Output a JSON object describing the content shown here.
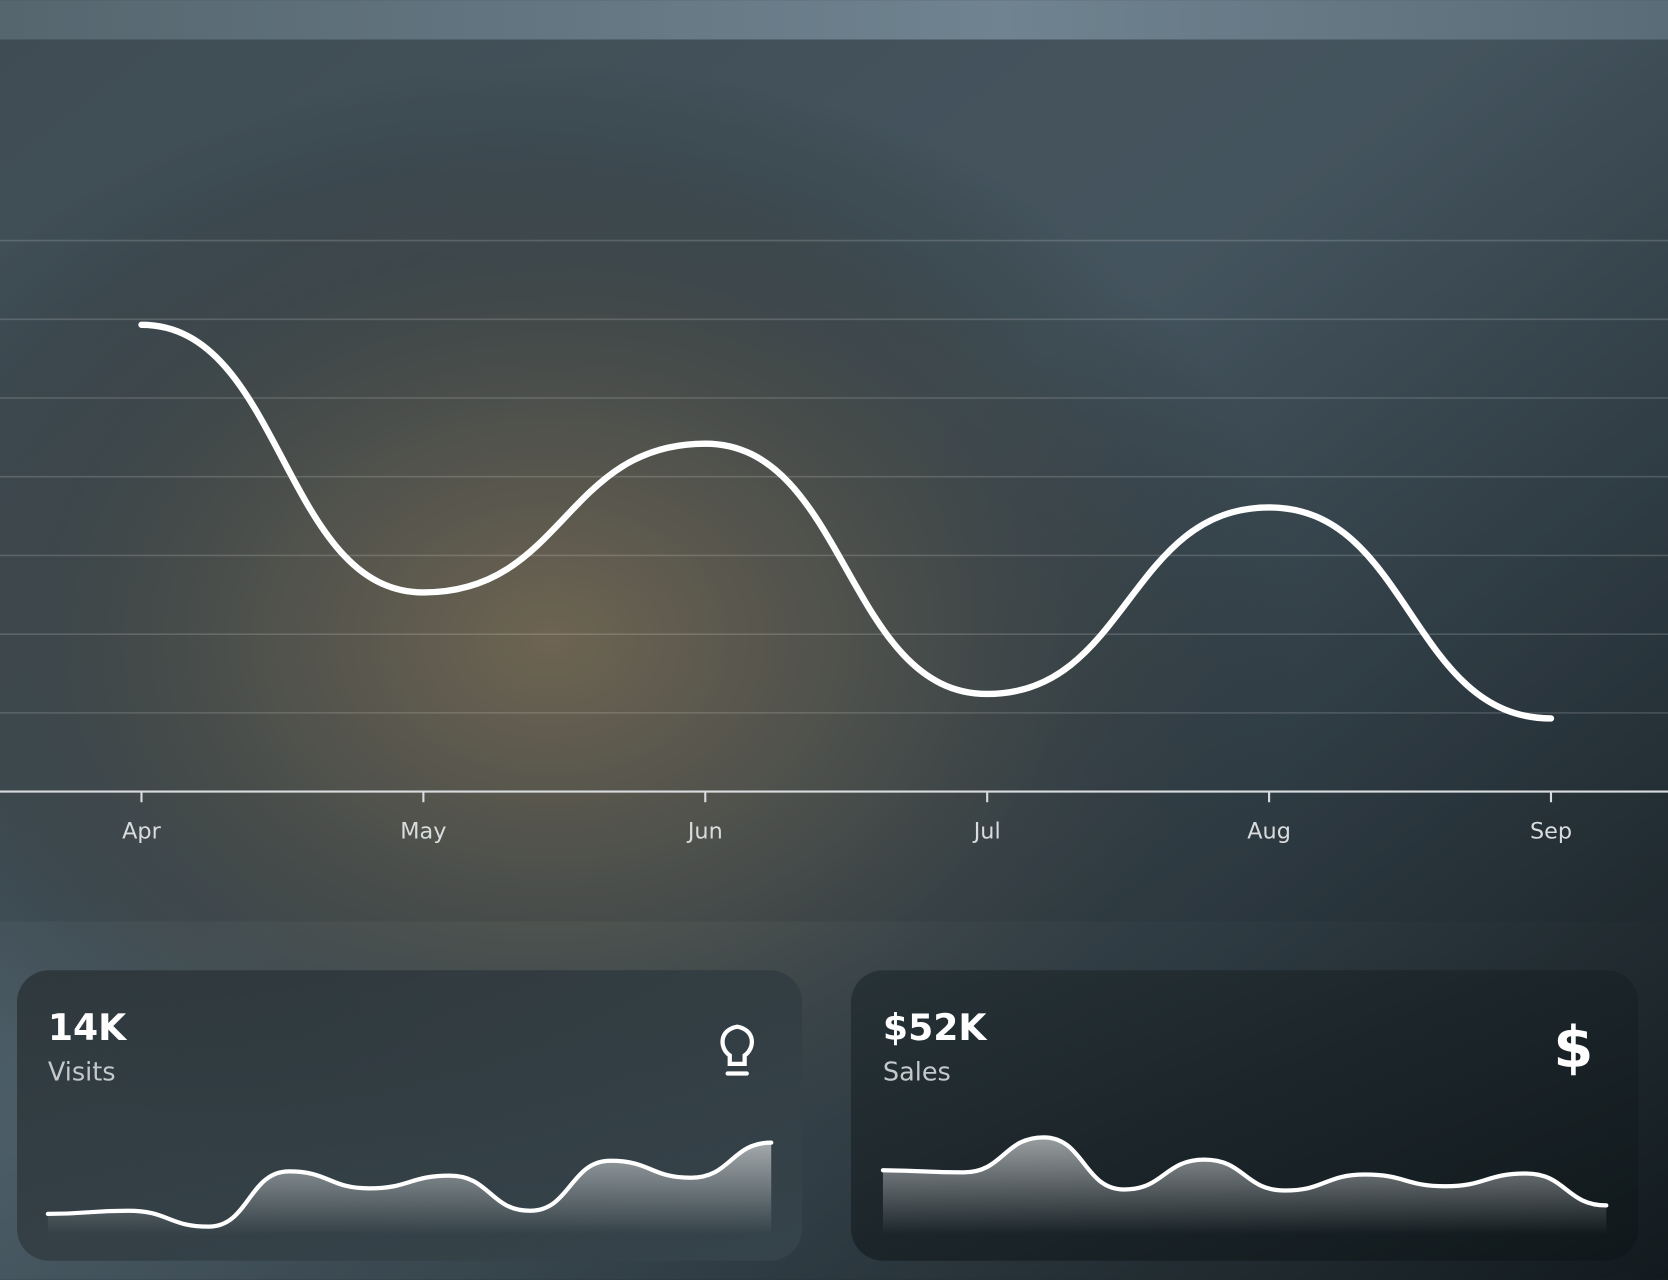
{
  "chart_data": [
    {
      "type": "line",
      "categories": [
        "Apr",
        "May",
        "Jun",
        "Jul",
        "Aug",
        "Sep"
      ],
      "values": [
        5.93,
        2.53,
        4.42,
        1.24,
        3.61,
        0.93
      ],
      "color": "#ffffff",
      "ylim": [
        0,
        9.5
      ],
      "yticks": [
        1,
        2,
        3,
        4,
        5,
        6,
        7
      ],
      "grid": true
    },
    {
      "type": "area",
      "title": "14K",
      "subtitle": "Visits",
      "color": "#ffffff",
      "values": [
        19,
        22,
        7,
        59,
        43,
        55,
        22,
        69,
        53,
        86
      ],
      "ylim": [
        0,
        100
      ]
    },
    {
      "type": "area",
      "title": "$52K",
      "subtitle": "Sales",
      "color": "#ffffff",
      "values": [
        60,
        58,
        91,
        42,
        70,
        41,
        56,
        45,
        57,
        27
      ],
      "ylim": [
        0,
        100
      ]
    }
  ]
}
